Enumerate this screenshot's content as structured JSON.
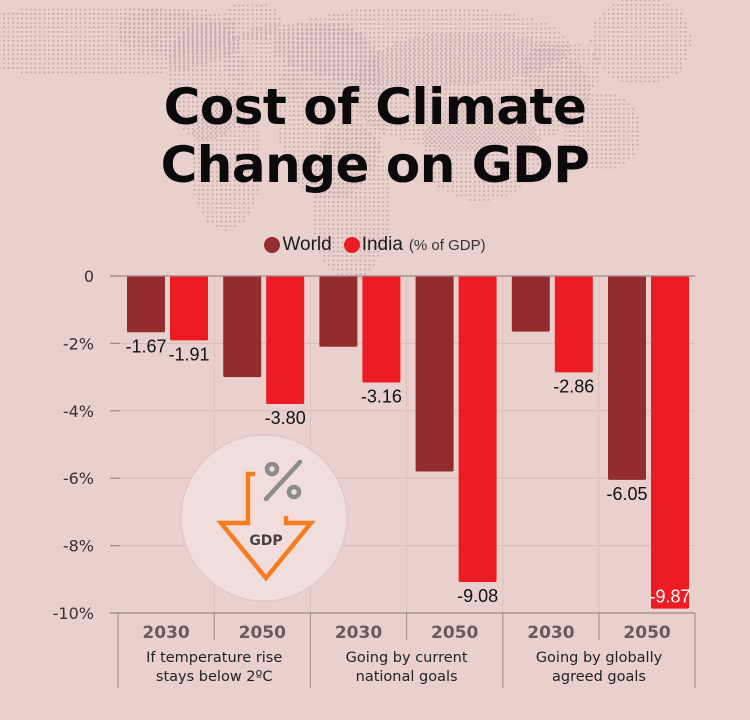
{
  "title_lines": [
    "Cost of Climate",
    "Change on GDP"
  ],
  "legend": {
    "items": [
      {
        "label": "World",
        "color": "#922c2f"
      },
      {
        "label": "India",
        "color": "#ed1c24"
      }
    ],
    "unit": "(% of GDP)"
  },
  "icon": {
    "arrow_text": "GDP",
    "symbol": "%",
    "arrow_color": "#f57c1f",
    "symbol_color": "#8c8c8c"
  },
  "chart_data": {
    "type": "bar",
    "title": "Cost of Climate Change on GDP",
    "ylabel": "% of GDP",
    "ylim": [
      -10,
      0
    ],
    "yticks": [
      0,
      -2,
      -4,
      -6,
      -8,
      -10
    ],
    "ytick_labels": [
      "0",
      "-2%",
      "-4%",
      "-6%",
      "-8%",
      "-10%"
    ],
    "grid": true,
    "legend_position": "top-center",
    "groups": [
      {
        "label_lines": [
          "If temperature rise",
          "stays below 2ºC"
        ],
        "years": [
          "2030",
          "2050"
        ]
      },
      {
        "label_lines": [
          "Going by current",
          "national goals"
        ],
        "years": [
          "2030",
          "2050"
        ]
      },
      {
        "label_lines": [
          "Going by globally",
          "agreed goals"
        ],
        "years": [
          "2030",
          "2050"
        ]
      }
    ],
    "categories": [
      "2030",
      "2050",
      "2030",
      "2050",
      "2030",
      "2050"
    ],
    "series": [
      {
        "name": "World",
        "color": "#922c2f",
        "values": [
          -1.67,
          -3.0,
          -2.1,
          -5.8,
          -1.65,
          -6.05
        ],
        "labels": [
          "-1.67",
          "",
          "",
          "",
          "",
          "-6.05"
        ]
      },
      {
        "name": "India",
        "color": "#ed1c24",
        "values": [
          -1.91,
          -3.8,
          -3.16,
          -9.08,
          -2.86,
          -9.87
        ],
        "labels": [
          "-1.91",
          "-3.80",
          "-3.16",
          "-9.08",
          "-2.86",
          "-9.87"
        ]
      }
    ]
  }
}
